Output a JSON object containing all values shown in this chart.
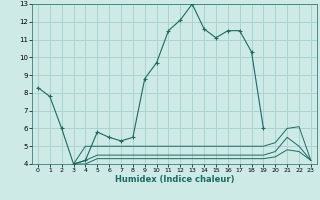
{
  "xlabel": "Humidex (Indice chaleur)",
  "bg_color": "#ceeae7",
  "grid_color": "#aad4d0",
  "line_color": "#1a6b60",
  "xlim": [
    -0.5,
    23.5
  ],
  "ylim": [
    4,
    13
  ],
  "xticks": [
    0,
    1,
    2,
    3,
    4,
    5,
    6,
    7,
    8,
    9,
    10,
    11,
    12,
    13,
    14,
    15,
    16,
    17,
    18,
    19,
    20,
    21,
    22,
    23
  ],
  "yticks": [
    4,
    5,
    6,
    7,
    8,
    9,
    10,
    11,
    12,
    13
  ],
  "series": [
    [
      8.3,
      7.8,
      6.0,
      4.0,
      4.2,
      5.8,
      5.5,
      5.3,
      5.5,
      8.8,
      9.7,
      11.5,
      12.1,
      13.0,
      11.6,
      11.1,
      11.5,
      11.5,
      10.3,
      6.0,
      null,
      null,
      null,
      null
    ],
    [
      null,
      null,
      null,
      4.0,
      5.0,
      5.0,
      5.0,
      5.0,
      5.0,
      5.0,
      5.0,
      5.0,
      5.0,
      5.0,
      5.0,
      5.0,
      5.0,
      5.0,
      5.0,
      5.0,
      5.2,
      6.0,
      6.1,
      4.2
    ],
    [
      null,
      null,
      null,
      4.0,
      4.2,
      4.5,
      4.5,
      4.5,
      4.5,
      4.5,
      4.5,
      4.5,
      4.5,
      4.5,
      4.5,
      4.5,
      4.5,
      4.5,
      4.5,
      4.5,
      4.7,
      5.5,
      5.0,
      4.2
    ],
    [
      null,
      null,
      null,
      4.0,
      4.0,
      4.3,
      4.3,
      4.3,
      4.3,
      4.3,
      4.3,
      4.3,
      4.3,
      4.3,
      4.3,
      4.3,
      4.3,
      4.3,
      4.3,
      4.3,
      4.4,
      4.8,
      4.7,
      4.2
    ]
  ]
}
